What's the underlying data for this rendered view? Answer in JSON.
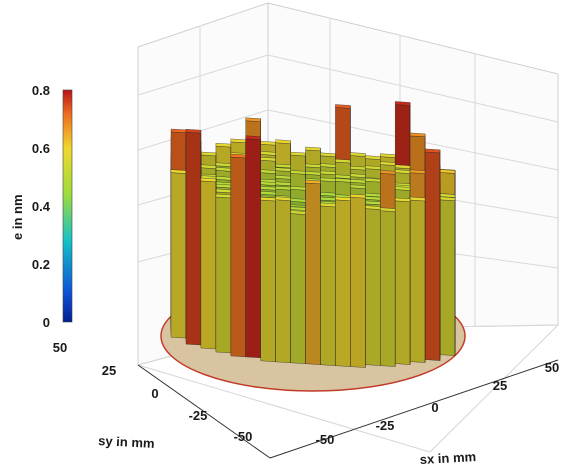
{
  "chart_data": {
    "type": "bar3d",
    "xlabel": "sx in mm",
    "ylabel": "sy in mm",
    "zlabel": "e in nm",
    "x_ticks": [
      "-50",
      "-25",
      "0",
      "25",
      "50"
    ],
    "y_ticks": [
      "-50",
      "-25",
      "0",
      "25",
      "50"
    ],
    "z_ticks": [
      "0",
      "0.2",
      "0.4",
      "0.6",
      "0.8"
    ],
    "xlim": [
      -50,
      50
    ],
    "ylim": [
      -50,
      50
    ],
    "zlim": [
      0,
      0.8
    ],
    "colormap": "jet",
    "colorbar_range": [
      0,
      0.8
    ],
    "grid": true,
    "wafer_radius_mm": 50,
    "pitch_mm": 5,
    "height_model": {
      "center_value": 0.45,
      "mid_value": 0.5,
      "edge_value": 0.6,
      "edge_peak_max": 0.78
    },
    "colors": {
      "low": "#1f3fbf",
      "mid": "#2fc0c0",
      "high": "#e8e030",
      "max": "#d42020"
    }
  }
}
